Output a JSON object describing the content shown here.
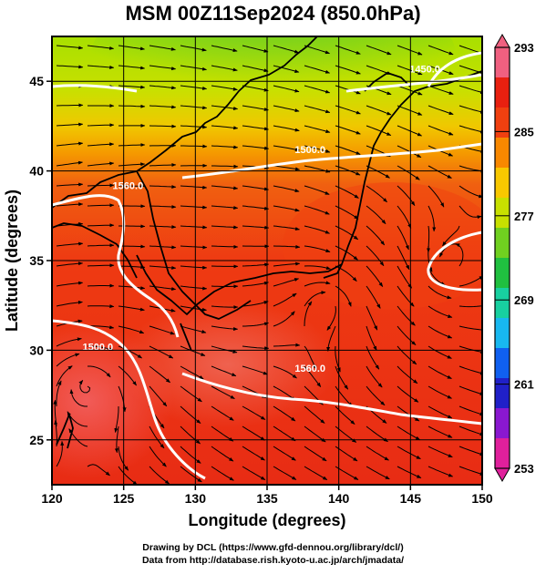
{
  "title": "MSM 00Z11Sep2024 (850.0hPa)",
  "x_axis": {
    "label": "Longitude (degrees)",
    "range": [
      120,
      150
    ],
    "ticks": [
      120,
      125,
      130,
      135,
      140,
      145,
      150
    ]
  },
  "y_axis": {
    "label": "Latitude  (degrees)",
    "range": [
      22.5,
      47.5
    ],
    "ticks": [
      25,
      30,
      35,
      40,
      45
    ]
  },
  "colorbar": {
    "range": [
      253,
      293
    ],
    "labels": [
      293,
      285,
      277,
      269,
      261,
      253
    ],
    "colors": [
      "#e0209c",
      "#8a18d0",
      "#2020c8",
      "#1060f0",
      "#18b8f0",
      "#18d0a0",
      "#20c040",
      "#70d020",
      "#c8e000",
      "#f8c800",
      "#f88800",
      "#f04010",
      "#e82010",
      "#f06080"
    ]
  },
  "contour_labels": [
    {
      "text": "1560.0",
      "lon": 125.3,
      "lat": 39.0
    },
    {
      "text": "1500.0",
      "lon": 138.0,
      "lat": 41.0
    },
    {
      "text": "1450.0",
      "lon": 146.0,
      "lat": 45.5
    },
    {
      "text": "1560.0",
      "lon": 138.0,
      "lat": 28.8
    },
    {
      "text": "1500.0",
      "lon": 123.2,
      "lat": 30.0
    }
  ],
  "credits": {
    "line1": "Drawing by DCL (https://www.gfd-dennou.org/library/dcl/)",
    "line2": "Data from http://database.rish.kyoto-u.ac.jp/arch/jmadata/"
  }
}
